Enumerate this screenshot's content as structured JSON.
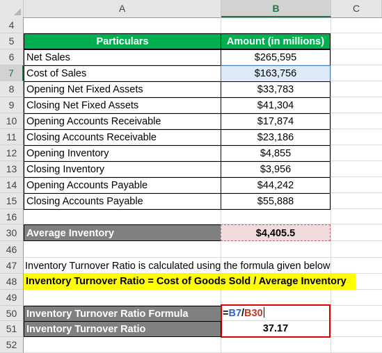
{
  "columns": [
    {
      "label": "A",
      "active": false
    },
    {
      "label": "B",
      "active": true
    },
    {
      "label": "C",
      "active": false
    }
  ],
  "rows": [
    {
      "num": "4",
      "active": false
    },
    {
      "num": "5",
      "active": false
    },
    {
      "num": "6",
      "active": false
    },
    {
      "num": "7",
      "active": true
    },
    {
      "num": "8",
      "active": false
    },
    {
      "num": "9",
      "active": false
    },
    {
      "num": "10",
      "active": false
    },
    {
      "num": "11",
      "active": false
    },
    {
      "num": "12",
      "active": false
    },
    {
      "num": "13",
      "active": false
    },
    {
      "num": "14",
      "active": false
    },
    {
      "num": "15",
      "active": false
    },
    {
      "num": "16",
      "active": false
    },
    {
      "num": "30",
      "active": false
    },
    {
      "num": "46",
      "active": false
    },
    {
      "num": "47",
      "active": false
    },
    {
      "num": "48",
      "active": false
    },
    {
      "num": "49",
      "active": false
    },
    {
      "num": "50",
      "active": false
    },
    {
      "num": "51",
      "active": false
    },
    {
      "num": "52",
      "active": false
    }
  ],
  "table": {
    "header_particulars": "Particulars",
    "header_amount": "Amount (in millions)",
    "items": [
      {
        "label": "Net Sales",
        "value": "$265,595"
      },
      {
        "label": "Cost of Sales",
        "value": "$163,756"
      },
      {
        "label": "Opening Net Fixed Assets",
        "value": "$33,783"
      },
      {
        "label": "Closing Net Fixed Assets",
        "value": "$41,304"
      },
      {
        "label": "Opening Accounts Receivable",
        "value": "$17,874"
      },
      {
        "label": "Closing Accounts Receivable",
        "value": "$23,186"
      },
      {
        "label": "Opening Inventory",
        "value": "$4,855"
      },
      {
        "label": "Closing Inventory",
        "value": "$3,956"
      },
      {
        "label": "Opening Accounts Payable",
        "value": "$44,242"
      },
      {
        "label": "Closing Accounts Payable",
        "value": "$55,888"
      }
    ]
  },
  "average": {
    "label": "Average Inventory",
    "value": "$4,405.5"
  },
  "note": "Inventory Turnover Ratio is calculated using the formula given below",
  "formula_text": "Inventory Turnover Ratio = Cost of Goods Sold / Average Inventory",
  "formula_row": {
    "label": "Inventory Turnover Ratio Formula",
    "eq": "=",
    "ref1": "B7",
    "op": "/",
    "ref2": "B30"
  },
  "result_row": {
    "label": "Inventory Turnover Ratio",
    "value": "37.17"
  },
  "colors": {
    "header_green": "#00b050",
    "label_gray": "#808080",
    "highlight_pink": "#f2dcdb",
    "highlight_yellow": "#ffff00",
    "ref_blue": "#2f5fd0",
    "ref_red": "#c0392b",
    "error_red_border": "#e00000"
  }
}
